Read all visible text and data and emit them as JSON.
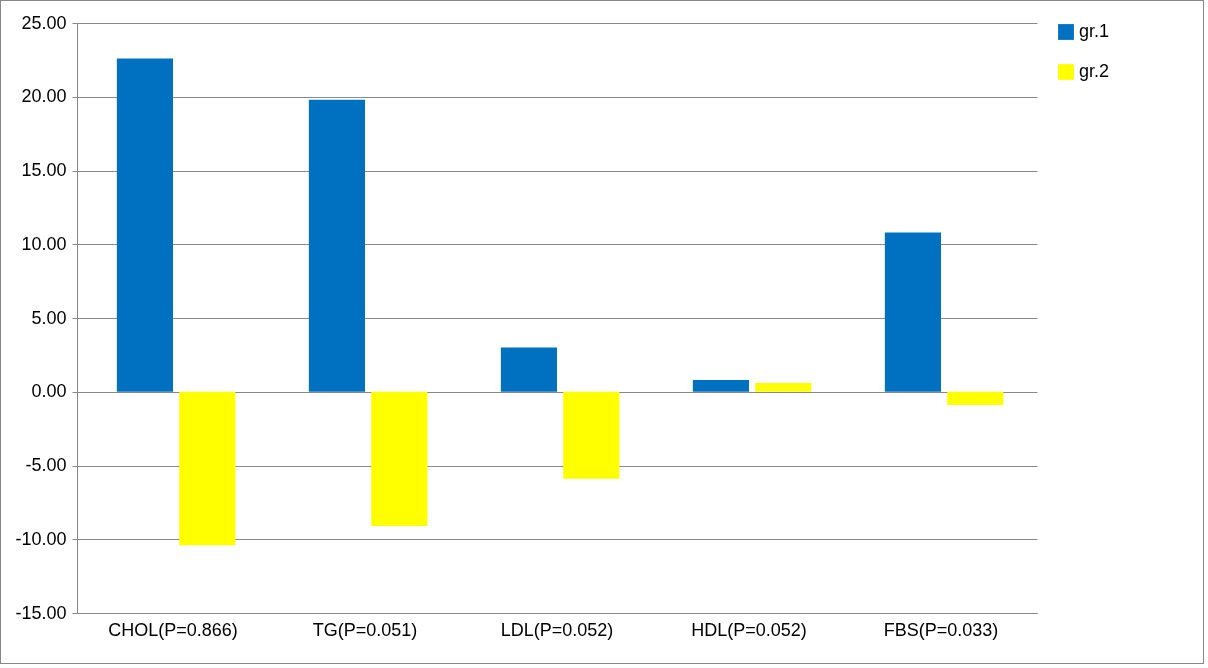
{
  "chart_data": {
    "type": "bar",
    "categories": [
      "CHOL(P=0.866)",
      "TG(P=0.051)",
      "LDL(P=0.052)",
      "HDL(P=0.052)",
      "FBS(P=0.033)"
    ],
    "series": [
      {
        "name": "gr.1",
        "color": "#0070c0",
        "values": [
          22.6,
          19.8,
          3.0,
          0.8,
          10.8
        ]
      },
      {
        "name": "gr.2",
        "color": "#ffff00",
        "values": [
          -10.4,
          -9.1,
          -5.9,
          0.6,
          -0.9
        ]
      }
    ],
    "ylim": [
      -15,
      25
    ],
    "yticks": [
      {
        "value": -15,
        "label": "-15.00"
      },
      {
        "value": -10,
        "label": "-10.00"
      },
      {
        "value": -5,
        "label": "-5.00"
      },
      {
        "value": 0,
        "label": "0.00"
      },
      {
        "value": 5,
        "label": "5.00"
      },
      {
        "value": 10,
        "label": "10.00"
      },
      {
        "value": 15,
        "label": "15.00"
      },
      {
        "value": 20,
        "label": "20.00"
      },
      {
        "value": 25,
        "label": "25.00"
      }
    ],
    "grid": "y",
    "legend": "right"
  }
}
